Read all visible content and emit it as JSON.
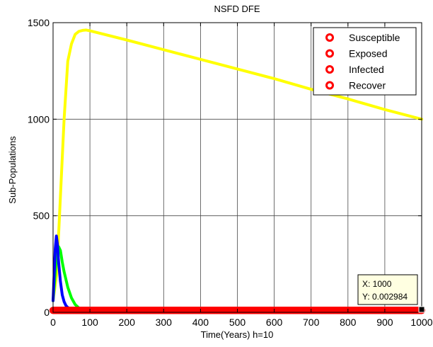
{
  "chart_data": {
    "type": "line",
    "title": "NSFD DFE",
    "xlabel": "Time(Years) h=10",
    "ylabel": "Sub-Populations",
    "xlim": [
      0,
      1000
    ],
    "ylim": [
      0,
      1500
    ],
    "xticks": [
      0,
      100,
      200,
      300,
      400,
      500,
      600,
      700,
      800,
      900,
      1000
    ],
    "yticks": [
      0,
      500,
      1000,
      1500
    ],
    "grid": true,
    "legend_position": "top-right",
    "legend": [
      {
        "label": "Susceptible",
        "color": "#ff0000",
        "marker": "circle"
      },
      {
        "label": "Exposed",
        "color": "#ff0000",
        "marker": "circle"
      },
      {
        "label": "Infected",
        "color": "#ff0000",
        "marker": "circle"
      },
      {
        "label": "Recover",
        "color": "#ff0000",
        "marker": "circle"
      }
    ],
    "series": [
      {
        "color": "#ffff00",
        "x": [
          0,
          10,
          20,
          30,
          40,
          50,
          60,
          70,
          80,
          90,
          100,
          200,
          300,
          400,
          500,
          600,
          700,
          800,
          900,
          1000
        ],
        "y": [
          60,
          200,
          600,
          1000,
          1300,
          1390,
          1440,
          1455,
          1460,
          1462,
          1458,
          1410,
          1360,
          1310,
          1260,
          1210,
          1155,
          1105,
          1050,
          1000
        ]
      },
      {
        "color": "#00ff00",
        "x": [
          0,
          5,
          10,
          15,
          20,
          25,
          30,
          40,
          50,
          60,
          70,
          80,
          90,
          100,
          150,
          200,
          300,
          400,
          500,
          600,
          700,
          800,
          900,
          1000
        ],
        "y": [
          60,
          180,
          300,
          340,
          320,
          260,
          210,
          130,
          75,
          40,
          22,
          14,
          10,
          8,
          7,
          7,
          7,
          7,
          7,
          7,
          7,
          7,
          7,
          7
        ]
      },
      {
        "color": "#0000ff",
        "x": [
          0,
          3,
          6,
          9,
          12,
          15,
          20,
          25,
          30,
          35,
          40,
          50,
          60,
          80,
          100,
          200,
          300,
          400,
          500,
          600,
          700,
          800,
          900,
          1000
        ],
        "y": [
          60,
          200,
          330,
          395,
          350,
          260,
          160,
          90,
          55,
          35,
          25,
          12,
          6,
          3,
          2,
          1,
          1,
          1,
          1,
          1,
          1,
          1,
          1,
          1
        ]
      },
      {
        "color": "#ff0000",
        "marker": "circle",
        "x_range": [
          0,
          1000
        ],
        "x_step": 2,
        "y_const": 10
      }
    ],
    "datatip": {
      "x": 1000,
      "y": 0.002984,
      "x_text": "X: 1000",
      "y_text": "Y: 0.002984"
    }
  }
}
